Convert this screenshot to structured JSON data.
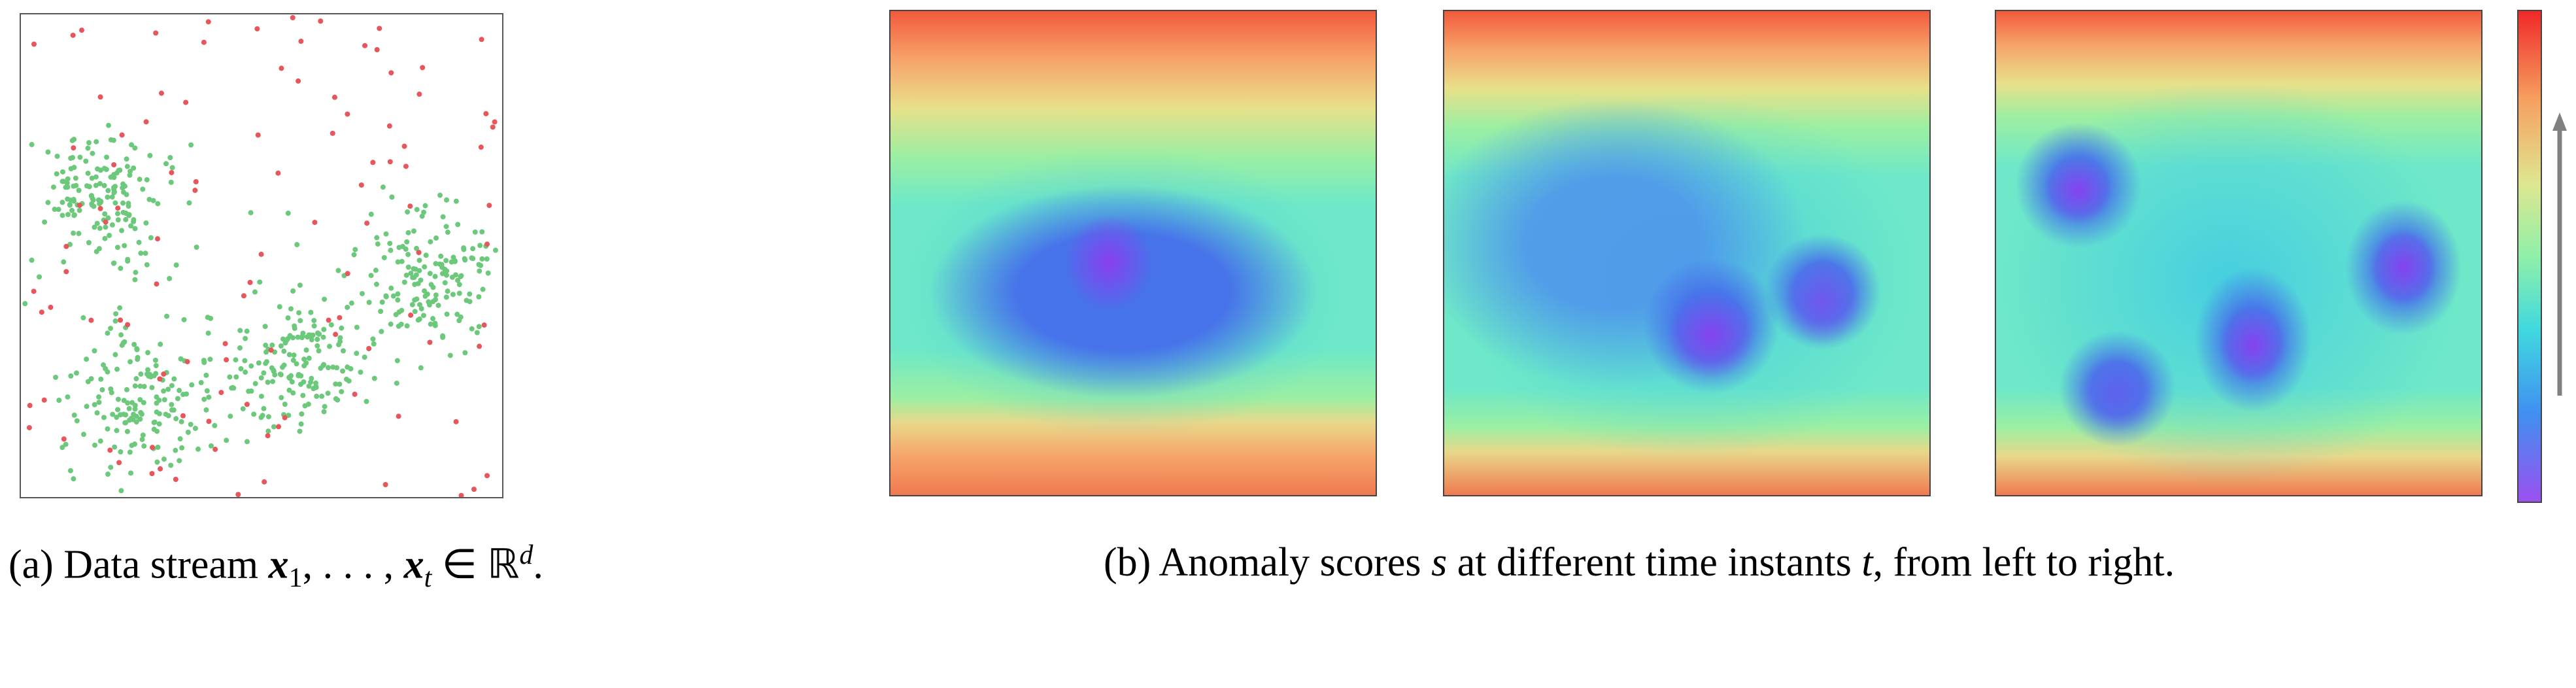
{
  "caption_a": [
    "(a) Data stream ",
    "x",
    "1",
    ", . . . , ",
    "x",
    "t",
    " ∈ ℝ",
    "d",
    "."
  ],
  "caption_b": [
    "(b) Anomaly scores ",
    "s",
    " at different time instants ",
    "t",
    ", from left to right."
  ]
}
